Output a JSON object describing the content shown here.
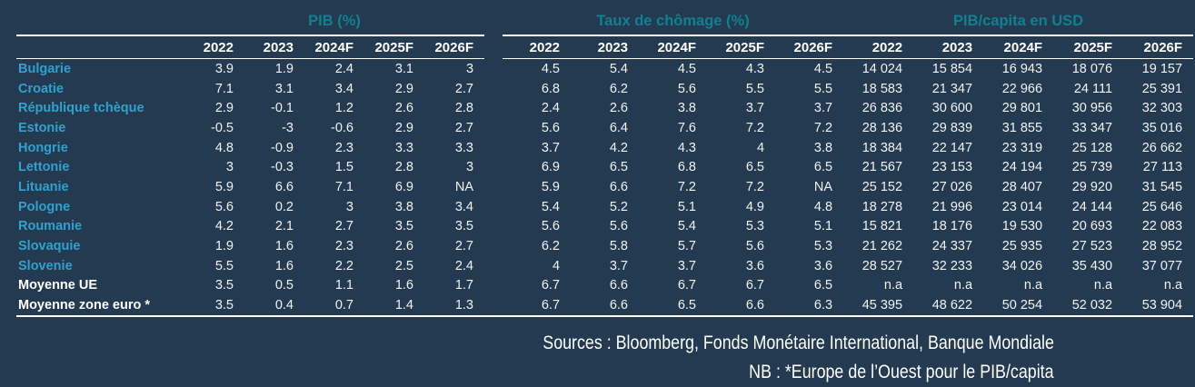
{
  "colors": {
    "background": "#233A50",
    "section_title": "#11808F",
    "country_name": "#30A2CF",
    "rule": "#FFFFFF",
    "value_text": "#F2F2F2"
  },
  "table": {
    "sections": [
      {
        "title": "PIB (%)"
      },
      {
        "title": "Taux de chômage (%)"
      },
      {
        "title": "PIB/capita en USD"
      }
    ],
    "years": [
      "2022",
      "2023",
      "2024F",
      "2025F",
      "2026F"
    ],
    "rows": [
      {
        "name": "Bulgarie",
        "is_average": false,
        "pib": [
          "3.9",
          "1.9",
          "2.4",
          "3.1",
          "3"
        ],
        "chomage": [
          "4.5",
          "5.4",
          "4.5",
          "4.3",
          "4.5"
        ],
        "capita": [
          "14 024",
          "15 854",
          "16 943",
          "18 076",
          "19 157"
        ]
      },
      {
        "name": "Croatie",
        "is_average": false,
        "pib": [
          "7.1",
          "3.1",
          "3.4",
          "2.9",
          "2.7"
        ],
        "chomage": [
          "6.8",
          "6.2",
          "5.6",
          "5.5",
          "5.5"
        ],
        "capita": [
          "18 583",
          "21 347",
          "22 966",
          "24 111",
          "25 391"
        ]
      },
      {
        "name": "République tchèque",
        "is_average": false,
        "pib": [
          "2.9",
          "-0.1",
          "1.2",
          "2.6",
          "2.8"
        ],
        "chomage": [
          "2.4",
          "2.6",
          "3.8",
          "3.7",
          "3.7"
        ],
        "capita": [
          "26 836",
          "30 600",
          "29 801",
          "30 956",
          "32 303"
        ]
      },
      {
        "name": "Estonie",
        "is_average": false,
        "pib": [
          "-0.5",
          "-3",
          "-0.6",
          "2.9",
          "2.7"
        ],
        "chomage": [
          "5.6",
          "6.4",
          "7.6",
          "7.2",
          "7.2"
        ],
        "capita": [
          "28 136",
          "29 839",
          "31 855",
          "33 347",
          "35 016"
        ]
      },
      {
        "name": "Hongrie",
        "is_average": false,
        "pib": [
          "4.8",
          "-0.9",
          "2.3",
          "3.3",
          "3.3"
        ],
        "chomage": [
          "3.7",
          "4.2",
          "4.3",
          "4",
          "3.8"
        ],
        "capita": [
          "18 384",
          "22 147",
          "23 319",
          "25 128",
          "26 662"
        ]
      },
      {
        "name": "Lettonie",
        "is_average": false,
        "pib": [
          "3",
          "-0.3",
          "1.5",
          "2.8",
          "3"
        ],
        "chomage": [
          "6.9",
          "6.5",
          "6.8",
          "6.5",
          "6.5"
        ],
        "capita": [
          "21 567",
          "23 153",
          "24 194",
          "25 739",
          "27 113"
        ]
      },
      {
        "name": "Lituanie",
        "is_average": false,
        "pib": [
          "5.9",
          "6.6",
          "7.1",
          "6.9",
          "NA"
        ],
        "chomage": [
          "5.9",
          "6.6",
          "7.2",
          "7.2",
          "NA"
        ],
        "capita": [
          "25 152",
          "27 026",
          "28 407",
          "29 920",
          "31 545"
        ]
      },
      {
        "name": "Pologne",
        "is_average": false,
        "pib": [
          "5.6",
          "0.2",
          "3",
          "3.8",
          "3.4"
        ],
        "chomage": [
          "5.4",
          "5.2",
          "5.1",
          "4.9",
          "4.8"
        ],
        "capita": [
          "18 278",
          "21 996",
          "23 014",
          "24 144",
          "25 646"
        ]
      },
      {
        "name": "Roumanie",
        "is_average": false,
        "pib": [
          "4.2",
          "2.1",
          "2.7",
          "3.5",
          "3.5"
        ],
        "chomage": [
          "5.6",
          "5.6",
          "5.4",
          "5.3",
          "5.1"
        ],
        "capita": [
          "15 821",
          "18 176",
          "19 530",
          "20 693",
          "22 083"
        ]
      },
      {
        "name": "Slovaquie",
        "is_average": false,
        "pib": [
          "1.9",
          "1.6",
          "2.3",
          "2.6",
          "2.7"
        ],
        "chomage": [
          "6.2",
          "5.8",
          "5.7",
          "5.6",
          "5.3"
        ],
        "capita": [
          "21 262",
          "24 337",
          "25 935",
          "27 523",
          "28 952"
        ]
      },
      {
        "name": "Slovenie",
        "is_average": false,
        "pib": [
          "5.5",
          "1.6",
          "2.2",
          "2.5",
          "2.4"
        ],
        "chomage": [
          "4",
          "3.7",
          "3.7",
          "3.6",
          "3.6"
        ],
        "capita": [
          "28 527",
          "32 233",
          "34 026",
          "35 430",
          "37 077"
        ]
      },
      {
        "name": "Moyenne UE",
        "is_average": true,
        "pib": [
          "3.5",
          "0.5",
          "1.1",
          "1.6",
          "1.7"
        ],
        "chomage": [
          "6.7",
          "6.6",
          "6.7",
          "6.7",
          "6.5"
        ],
        "capita": [
          "n.a",
          "n.a",
          "n.a",
          "n.a",
          "n.a"
        ]
      },
      {
        "name": "Moyenne zone euro *",
        "is_average": true,
        "pib": [
          "3.5",
          "0.4",
          "0.7",
          "1.4",
          "1.3"
        ],
        "chomage": [
          "6.7",
          "6.6",
          "6.5",
          "6.6",
          "6.3"
        ],
        "capita": [
          "45 395",
          "48 622",
          "50 254",
          "52 032",
          "53 904"
        ]
      }
    ]
  },
  "footer": {
    "sources": "Sources : Bloomberg, Fonds Monétaire International, Banque Mondiale",
    "nb": "NB : *Europe de l’Ouest pour le PIB/capita"
  }
}
